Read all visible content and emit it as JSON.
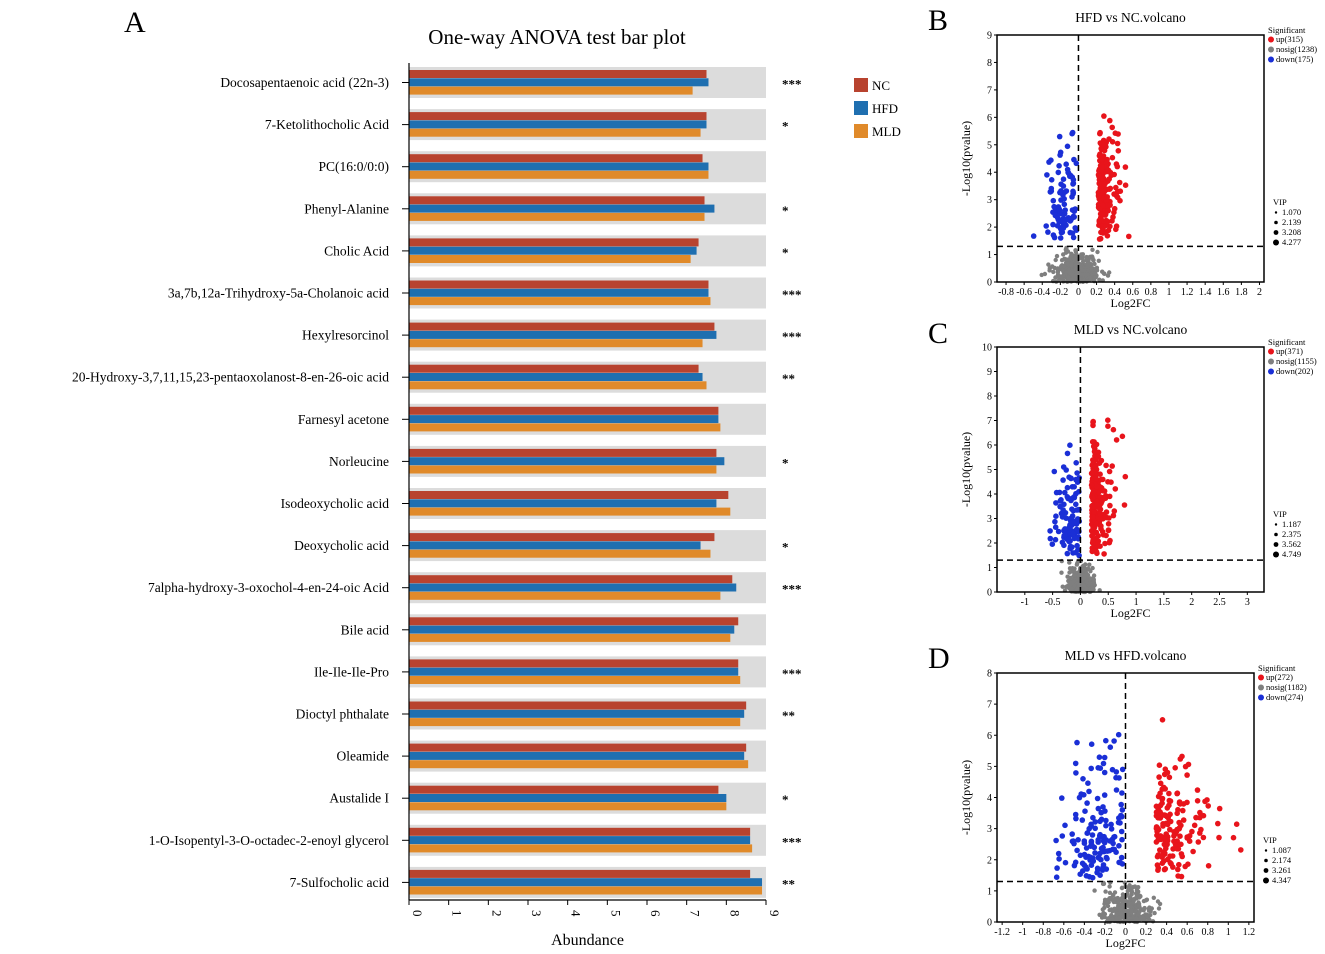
{
  "panel_letters": [
    "A",
    "B",
    "C",
    "D"
  ],
  "colors": {
    "NC": "#b8432f",
    "HFD": "#1f6fb0",
    "MLD": "#e08a2a",
    "background_bar": "#dcdcdc",
    "up": "#e8141b",
    "nosig": "#7f7f7f",
    "down": "#1a2fd6"
  },
  "chart_data": [
    {
      "type": "bar",
      "orientation": "horizontal",
      "title": "One-way ANOVA test bar plot",
      "xlabel": "Abundance",
      "ylabel": "",
      "xlim": [
        0,
        9
      ],
      "xticks": [
        "0",
        "1",
        "2",
        "3",
        "4",
        "5",
        "6",
        "7",
        "8",
        "9"
      ],
      "categories": [
        "Docosapentaenoic acid (22n-3)",
        "7-Ketolithocholic Acid",
        "PC(16:0/0:0)",
        "Phenyl-Alanine",
        "Cholic Acid",
        "3a,7b,12a-Trihydroxy-5a-Cholanoic acid",
        "Hexylresorcinol",
        "20-Hydroxy-3,7,11,15,23-pentaoxolanost-8-en-26-oic acid",
        "Farnesyl acetone",
        "Norleucine",
        "Isodeoxycholic acid",
        "Deoxycholic acid",
        "7alpha-hydroxy-3-oxochol-4-en-24-oic Acid",
        "Bile acid",
        "Ile-Ile-Ile-Pro",
        "Dioctyl phthalate",
        "Oleamide",
        "Austalide I",
        "1-O-Isopentyl-3-O-octadec-2-enoyl glycerol",
        "7-Sulfocholic acid"
      ],
      "series": [
        {
          "name": "NC",
          "values": [
            7.5,
            7.5,
            7.4,
            7.45,
            7.3,
            7.55,
            7.7,
            7.3,
            7.8,
            7.75,
            8.05,
            7.7,
            8.15,
            8.3,
            8.3,
            8.5,
            8.5,
            7.8,
            8.6,
            8.6
          ]
        },
        {
          "name": "HFD",
          "values": [
            7.55,
            7.5,
            7.55,
            7.7,
            7.25,
            7.55,
            7.75,
            7.4,
            7.8,
            7.95,
            7.75,
            7.35,
            8.25,
            8.2,
            8.3,
            8.45,
            8.45,
            8.0,
            8.6,
            8.9
          ]
        },
        {
          "name": "MLD",
          "values": [
            7.15,
            7.35,
            7.55,
            7.45,
            7.1,
            7.6,
            7.4,
            7.5,
            7.85,
            7.75,
            8.1,
            7.6,
            7.85,
            8.1,
            8.35,
            8.35,
            8.55,
            8.0,
            8.65,
            8.9
          ]
        }
      ],
      "significance": [
        "***",
        "*",
        "",
        "*",
        "*",
        "***",
        "***",
        "**",
        "",
        "*",
        "",
        "*",
        "***",
        "",
        "***",
        "**",
        "",
        "*",
        "***",
        "**"
      ],
      "legend": [
        "NC",
        "HFD",
        "MLD"
      ],
      "legend_position": "top-right"
    },
    {
      "type": "scatter",
      "title": "HFD vs NC.volcano",
      "xlabel": "Log2FC",
      "ylabel": "-Log10(pvalue)",
      "xlim": [
        -0.9,
        2.05
      ],
      "ylim": [
        0,
        9
      ],
      "xticks": [
        -0.8,
        -0.6,
        -0.4,
        -0.2,
        0,
        0.2,
        0.4,
        0.6,
        0.8,
        1,
        1.2,
        1.4,
        1.6,
        1.8,
        2
      ],
      "yticks": [
        0,
        1,
        2,
        3,
        4,
        5,
        6,
        7,
        8,
        9
      ],
      "threshold_y": 1.3,
      "legend_title": "Significant",
      "groups": [
        {
          "key": "up",
          "label": "up(315)",
          "count": 315
        },
        {
          "key": "nosig",
          "label": "nosig(1238)",
          "count": 1238
        },
        {
          "key": "down",
          "label": "down(175)",
          "count": 175
        }
      ],
      "vip_title": "VIP",
      "vip_levels": [
        "1.070",
        "2.139",
        "3.208",
        "4.277"
      ]
    },
    {
      "type": "scatter",
      "title": "MLD vs NC.volcano",
      "xlabel": "Log2FC",
      "ylabel": "-Log10(pvalue)",
      "xlim": [
        -1.5,
        3.3
      ],
      "ylim": [
        0,
        10
      ],
      "xticks": [
        -1,
        -0.5,
        0,
        0.5,
        1,
        1.5,
        2,
        2.5,
        3
      ],
      "yticks": [
        0,
        1,
        2,
        3,
        4,
        5,
        6,
        7,
        8,
        9,
        10
      ],
      "threshold_y": 1.3,
      "legend_title": "Significant",
      "groups": [
        {
          "key": "up",
          "label": "up(371)",
          "count": 371
        },
        {
          "key": "nosig",
          "label": "nosig(1155)",
          "count": 1155
        },
        {
          "key": "down",
          "label": "down(202)",
          "count": 202
        }
      ],
      "vip_title": "VIP",
      "vip_levels": [
        "1.187",
        "2.375",
        "3.562",
        "4.749"
      ]
    },
    {
      "type": "scatter",
      "title": "MLD vs HFD.volcano",
      "xlabel": "Log2FC",
      "ylabel": "-Log10(pvalue)",
      "xlim": [
        -1.25,
        1.25
      ],
      "ylim": [
        0,
        8
      ],
      "xticks": [
        -1.2,
        -1,
        -0.8,
        -0.6,
        -0.4,
        -0.2,
        0,
        0.2,
        0.4,
        0.6,
        0.8,
        1,
        1.2
      ],
      "yticks": [
        0,
        1,
        2,
        3,
        4,
        5,
        6,
        7,
        8
      ],
      "threshold_y": 1.3,
      "legend_title": "Significant",
      "groups": [
        {
          "key": "up",
          "label": "up(272)",
          "count": 272
        },
        {
          "key": "nosig",
          "label": "nosig(1182)",
          "count": 1182
        },
        {
          "key": "down",
          "label": "down(274)",
          "count": 274
        }
      ],
      "vip_title": "VIP",
      "vip_levels": [
        "1.087",
        "2.174",
        "3.261",
        "4.347"
      ]
    }
  ]
}
